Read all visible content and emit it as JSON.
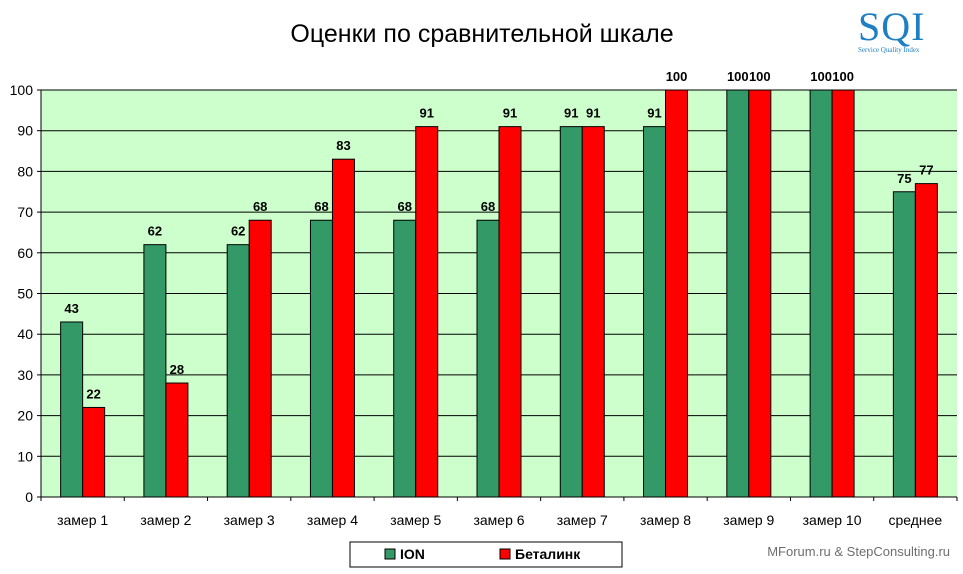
{
  "chart_data": {
    "type": "bar",
    "title": "Оценки по сравнительной шкале",
    "categories": [
      "замер 1",
      "замер 2",
      "замер 3",
      "замер 4",
      "замер 5",
      "замер 6",
      "замер 7",
      "замер 8",
      "замер 9",
      "замер 10",
      "среднее"
    ],
    "series": [
      {
        "name": "ION",
        "color": "#339966",
        "values": [
          43,
          62,
          62,
          68,
          68,
          68,
          91,
          91,
          100,
          100,
          75
        ],
        "labels": [
          "43",
          "62",
          "62",
          "68",
          "68",
          "68",
          "91",
          "91",
          "100",
          "100",
          "75"
        ]
      },
      {
        "name": "Беталинк",
        "color": "#ff0000",
        "values": [
          22,
          28,
          68,
          83,
          91,
          91,
          91,
          100,
          100,
          100,
          77
        ],
        "labels": [
          "22",
          "28",
          "68",
          "83",
          "91",
          "91",
          "91",
          "100",
          "100",
          "100",
          "77"
        ]
      }
    ],
    "ylim": [
      0,
      100
    ],
    "yticks": [
      0,
      10,
      20,
      30,
      40,
      50,
      60,
      70,
      80,
      90,
      100
    ],
    "xlabel": "",
    "ylabel": "",
    "plot_background": "#ccffcc",
    "grid": true,
    "legend": "bottom-center"
  },
  "logo": {
    "text": "SQI",
    "subtitle": "Service Quality Index"
  },
  "credit": "MForum.ru & StepConsulting.ru"
}
